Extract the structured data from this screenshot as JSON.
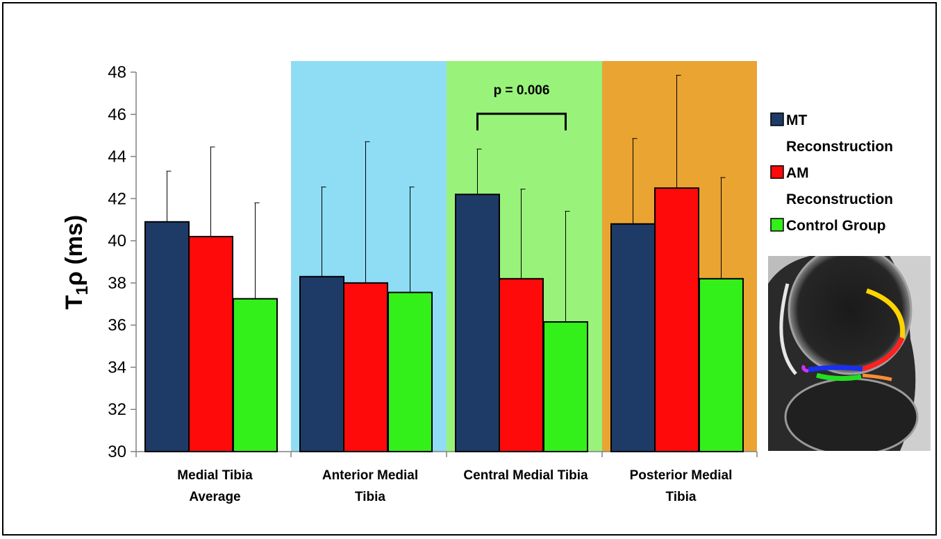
{
  "chart_data": {
    "type": "bar",
    "ylabel": "T1ρ (ms)",
    "ylabel_main": "T",
    "ylabel_sub": "1",
    "ylabel_rest": "ρ (ms)",
    "ylim": [
      30,
      48
    ],
    "yticks": [
      30,
      32,
      34,
      36,
      38,
      40,
      42,
      44,
      46,
      48
    ],
    "grid": false,
    "legend_position": "right",
    "categories": [
      [
        "Medial Tibia",
        "Average"
      ],
      [
        "Anterior Medial",
        "Tibia"
      ],
      [
        "Central Medial Tibia"
      ],
      [
        "Posterior Medial",
        "Tibia"
      ]
    ],
    "category_backgrounds": [
      "#ffffff",
      "#8fdcf5",
      "#99f27a",
      "#eaa432"
    ],
    "series": [
      {
        "legend": [
          "MT",
          "Reconstruction"
        ],
        "color": "#1d3b66",
        "values": [
          40.9,
          38.3,
          42.2,
          40.8
        ],
        "error_upper": [
          43.3,
          42.55,
          44.35,
          44.85
        ]
      },
      {
        "legend": [
          "AM",
          "Reconstruction"
        ],
        "color": "#ff0a0a",
        "values": [
          40.2,
          38.0,
          38.2,
          42.5
        ],
        "error_upper": [
          44.45,
          44.7,
          42.45,
          47.85
        ]
      },
      {
        "legend": [
          "Control Group"
        ],
        "color": "#33f01b",
        "values": [
          37.25,
          37.55,
          36.15,
          38.2
        ],
        "error_upper": [
          41.8,
          42.55,
          41.4,
          43.0
        ]
      }
    ],
    "annotations": [
      {
        "text": "p = 0.006",
        "category_index": 2,
        "bracket_from_series": 0,
        "bracket_to_series": 2
      }
    ],
    "inset_image": "knee-mri-image"
  }
}
